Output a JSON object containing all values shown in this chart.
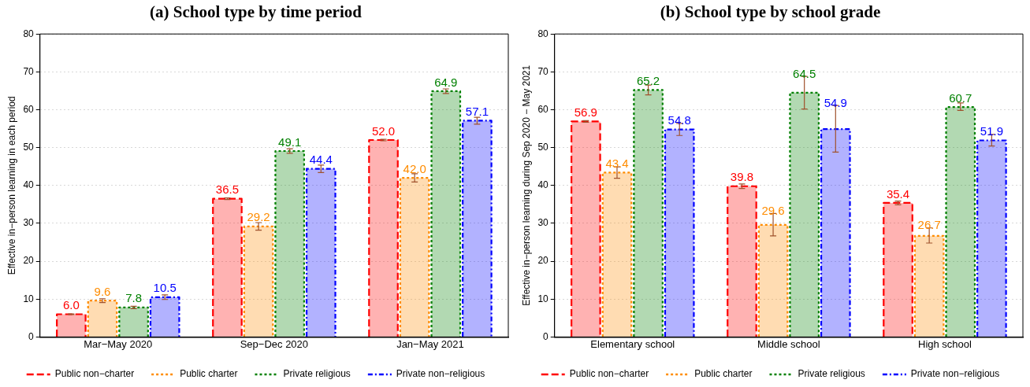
{
  "chart_data": [
    {
      "type": "bar",
      "title": "(a) School type by time period",
      "ylabel": "Effective in−person learning in each period",
      "categories": [
        "Mar−May 2020",
        "Sep−Dec 2020",
        "Jan−May 2021"
      ],
      "series": [
        {
          "name": "Public non−charter",
          "color": "#ff0000",
          "line_style": "dashed",
          "values": [
            6.0,
            36.5,
            52.0
          ],
          "errors": [
            0.1,
            0.2,
            0.2
          ],
          "value_labels": [
            "6.0",
            "36.5",
            "52.0"
          ]
        },
        {
          "name": "Public charter",
          "color": "#ff8c00",
          "line_style": "dotted",
          "values": [
            9.6,
            29.2,
            42.0
          ],
          "errors": [
            0.5,
            1.0,
            1.1
          ],
          "value_labels": [
            "9.6",
            "29.2",
            "42.0"
          ]
        },
        {
          "name": "Private religious",
          "color": "#008000",
          "line_style": "dotted",
          "values": [
            7.8,
            49.1,
            64.9
          ],
          "errors": [
            0.3,
            0.6,
            0.6
          ],
          "value_labels": [
            "7.8",
            "49.1",
            "64.9"
          ]
        },
        {
          "name": "Private non−religious",
          "color": "#0000ff",
          "line_style": "dashdot",
          "values": [
            10.5,
            44.4,
            57.1
          ],
          "errors": [
            0.6,
            1.0,
            0.9
          ],
          "value_labels": [
            "10.5",
            "44.4",
            "57.1"
          ]
        }
      ],
      "ylim": [
        0,
        80
      ],
      "yticks": [
        0,
        10,
        20,
        30,
        40,
        50,
        60,
        70,
        80
      ],
      "grid": "y",
      "legend": "bottom"
    },
    {
      "type": "bar",
      "title": "(b) School type by school grade",
      "ylabel": "Effective in−person learning during Sep 2020 − May 2021",
      "categories": [
        "Elementary school",
        "Middle school",
        "High school"
      ],
      "series": [
        {
          "name": "Public non−charter",
          "color": "#ff0000",
          "line_style": "dashed",
          "values": [
            56.9,
            39.8,
            35.4
          ],
          "errors": [
            0.2,
            0.6,
            0.5
          ],
          "value_labels": [
            "56.9",
            "39.8",
            "35.4"
          ]
        },
        {
          "name": "Public charter",
          "color": "#ff8c00",
          "line_style": "dotted",
          "values": [
            43.4,
            29.6,
            26.7
          ],
          "errors": [
            1.5,
            [
              26.7,
              32.6
            ],
            [
              24.8,
              28.8
            ]
          ],
          "value_labels": [
            "43.4",
            "29.6",
            "26.7"
          ]
        },
        {
          "name": "Private religious",
          "color": "#008000",
          "line_style": "dotted",
          "values": [
            65.2,
            64.5,
            60.7
          ],
          "errors": [
            1.3,
            [
              60.2,
              68.8
            ],
            [
              59.8,
              61.8
            ]
          ],
          "value_labels": [
            "65.2",
            "64.5",
            "60.7"
          ]
        },
        {
          "name": "Private non−religious",
          "color": "#0000ff",
          "line_style": "dashdot",
          "values": [
            54.8,
            54.9,
            51.9
          ],
          "errors": [
            1.6,
            [
              48.8,
              61.1
            ],
            [
              50.4,
              53.5
            ]
          ],
          "value_labels": [
            "54.8",
            "54.9",
            "51.9"
          ]
        }
      ],
      "ylim": [
        0,
        80
      ],
      "yticks": [
        0,
        10,
        20,
        30,
        40,
        50,
        60,
        70,
        80
      ],
      "grid": "y",
      "legend": "bottom"
    }
  ]
}
